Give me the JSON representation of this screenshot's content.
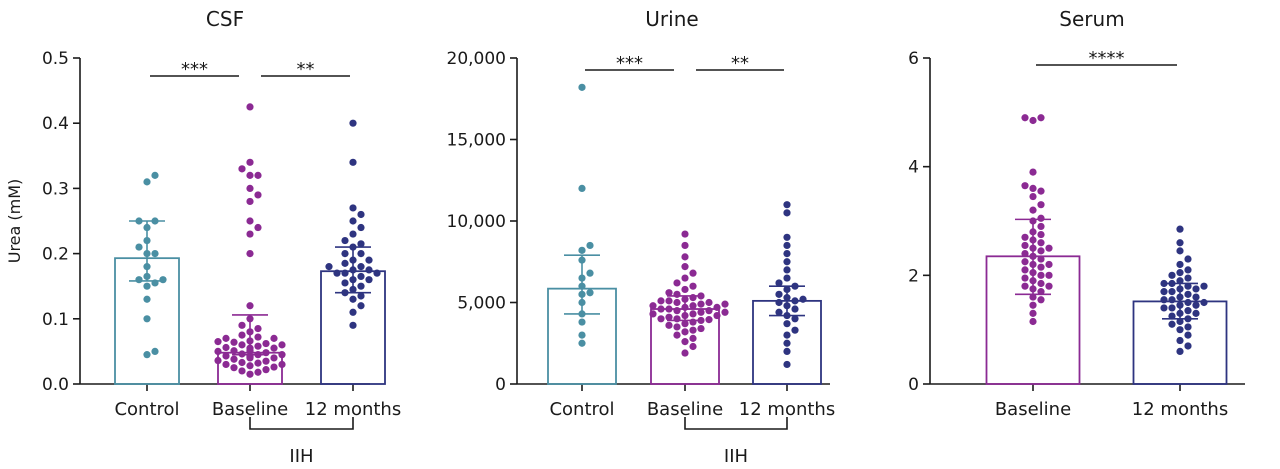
{
  "chart_data": [
    {
      "type": "bar",
      "title": "CSF",
      "ylabel": "Urea (mM)",
      "ylim": [
        0,
        0.5
      ],
      "yticks": [
        "0.0",
        "0.1",
        "0.2",
        "0.3",
        "0.4",
        "0.5"
      ],
      "yticks_values": [
        0,
        0.1,
        0.2,
        0.3,
        0.4,
        0.5
      ],
      "categories": [
        "Control",
        "Baseline",
        "12 months"
      ],
      "colors": [
        "#4a8fa3",
        "#8b2a93",
        "#2e3480"
      ],
      "means": [
        0.193,
        0.048,
        0.173
      ],
      "errors": [
        [
          0.158,
          0.25
        ],
        [
          0.045,
          0.106
        ],
        [
          0.14,
          0.21
        ]
      ],
      "points": [
        [
          0.045,
          0.05,
          0.1,
          0.13,
          0.15,
          0.155,
          0.16,
          0.16,
          0.165,
          0.18,
          0.2,
          0.2,
          0.21,
          0.22,
          0.24,
          0.25,
          0.25,
          0.31,
          0.32
        ],
        [
          0.015,
          0.018,
          0.02,
          0.022,
          0.025,
          0.026,
          0.028,
          0.03,
          0.03,
          0.032,
          0.033,
          0.035,
          0.036,
          0.038,
          0.04,
          0.04,
          0.041,
          0.042,
          0.043,
          0.045,
          0.045,
          0.046,
          0.048,
          0.05,
          0.05,
          0.051,
          0.052,
          0.055,
          0.055,
          0.056,
          0.058,
          0.06,
          0.06,
          0.062,
          0.064,
          0.065,
          0.066,
          0.07,
          0.07,
          0.072,
          0.075,
          0.08,
          0.085,
          0.09,
          0.1,
          0.12,
          0.2,
          0.23,
          0.24,
          0.25,
          0.28,
          0.29,
          0.3,
          0.32,
          0.32,
          0.33,
          0.34,
          0.425
        ],
        [
          0.09,
          0.11,
          0.12,
          0.13,
          0.135,
          0.14,
          0.145,
          0.15,
          0.155,
          0.16,
          0.16,
          0.165,
          0.17,
          0.17,
          0.17,
          0.175,
          0.175,
          0.18,
          0.18,
          0.185,
          0.19,
          0.19,
          0.2,
          0.2,
          0.21,
          0.215,
          0.22,
          0.23,
          0.24,
          0.25,
          0.26,
          0.27,
          0.34,
          0.4
        ]
      ],
      "significance": [
        {
          "from": 0,
          "to": 1,
          "label": "***"
        },
        {
          "from": 1,
          "to": 2,
          "label": "**"
        }
      ],
      "group_label": "IIH"
    },
    {
      "type": "bar",
      "title": "Urine",
      "ylabel": "",
      "ylim": [
        0,
        20000
      ],
      "yticks": [
        "0",
        "5,000",
        "10,000",
        "15,000",
        "20,000"
      ],
      "yticks_values": [
        0,
        5000,
        10000,
        15000,
        20000
      ],
      "categories": [
        "Control",
        "Baseline",
        "12 months"
      ],
      "colors": [
        "#4a8fa3",
        "#8b2a93",
        "#2e3480"
      ],
      "means": [
        5850,
        4600,
        5100
      ],
      "errors": [
        [
          4300,
          7900
        ],
        [
          3900,
          5400
        ],
        [
          4200,
          6000
        ]
      ],
      "points": [
        [
          2500,
          3000,
          3800,
          4300,
          5000,
          5500,
          5600,
          6000,
          6500,
          6800,
          7600,
          8200,
          8500,
          12000,
          18200
        ],
        [
          1900,
          2300,
          2600,
          2800,
          3000,
          3200,
          3300,
          3400,
          3500,
          3600,
          3700,
          3800,
          3900,
          3950,
          4000,
          4000,
          4100,
          4200,
          4200,
          4300,
          4300,
          4400,
          4400,
          4500,
          4500,
          4600,
          4600,
          4700,
          4700,
          4800,
          4800,
          4900,
          4900,
          5000,
          5000,
          5100,
          5100,
          5200,
          5300,
          5400,
          5500,
          5600,
          5800,
          6000,
          6200,
          6500,
          6800,
          7200,
          7800,
          8500,
          9200
        ],
        [
          1200,
          2000,
          2500,
          3000,
          3300,
          3700,
          4000,
          4200,
          4400,
          4600,
          4800,
          5000,
          5100,
          5200,
          5300,
          5500,
          5800,
          6000,
          6200,
          6500,
          7000,
          7500,
          8000,
          8500,
          9000,
          10500,
          11000
        ]
      ],
      "significance": [
        {
          "from": 0,
          "to": 1,
          "label": "***"
        },
        {
          "from": 1,
          "to": 2,
          "label": "**"
        }
      ],
      "group_label": "IIH"
    },
    {
      "type": "bar",
      "title": "Serum",
      "ylabel": "",
      "ylim": [
        0,
        6
      ],
      "yticks": [
        "0",
        "2",
        "4",
        "6"
      ],
      "yticks_values": [
        0,
        2,
        4,
        6
      ],
      "categories": [
        "Baseline",
        "12 months"
      ],
      "colors": [
        "#8b2a93",
        "#2e3480"
      ],
      "means": [
        2.35,
        1.52
      ],
      "errors": [
        [
          1.65,
          3.03
        ],
        [
          1.2,
          1.85
        ]
      ],
      "points": [
        [
          1.15,
          1.3,
          1.45,
          1.55,
          1.6,
          1.7,
          1.75,
          1.8,
          1.8,
          1.85,
          1.9,
          1.95,
          2.0,
          2.0,
          2.05,
          2.1,
          2.15,
          2.2,
          2.2,
          2.25,
          2.3,
          2.35,
          2.4,
          2.45,
          2.5,
          2.5,
          2.55,
          2.6,
          2.65,
          2.7,
          2.75,
          2.8,
          2.9,
          3.0,
          3.05,
          3.2,
          3.3,
          3.45,
          3.55,
          3.6,
          3.65,
          3.9,
          4.85,
          4.9,
          4.9
        ],
        [
          0.6,
          0.7,
          0.8,
          0.9,
          1.0,
          1.05,
          1.1,
          1.15,
          1.2,
          1.25,
          1.3,
          1.3,
          1.35,
          1.4,
          1.4,
          1.45,
          1.45,
          1.5,
          1.5,
          1.55,
          1.55,
          1.6,
          1.6,
          1.65,
          1.7,
          1.7,
          1.75,
          1.75,
          1.8,
          1.8,
          1.85,
          1.85,
          1.9,
          1.95,
          2.0,
          2.05,
          2.1,
          2.2,
          2.3,
          2.45,
          2.6,
          2.85
        ]
      ],
      "significance": [
        {
          "from": 0,
          "to": 1,
          "label": "****"
        }
      ],
      "group_label": ""
    }
  ]
}
